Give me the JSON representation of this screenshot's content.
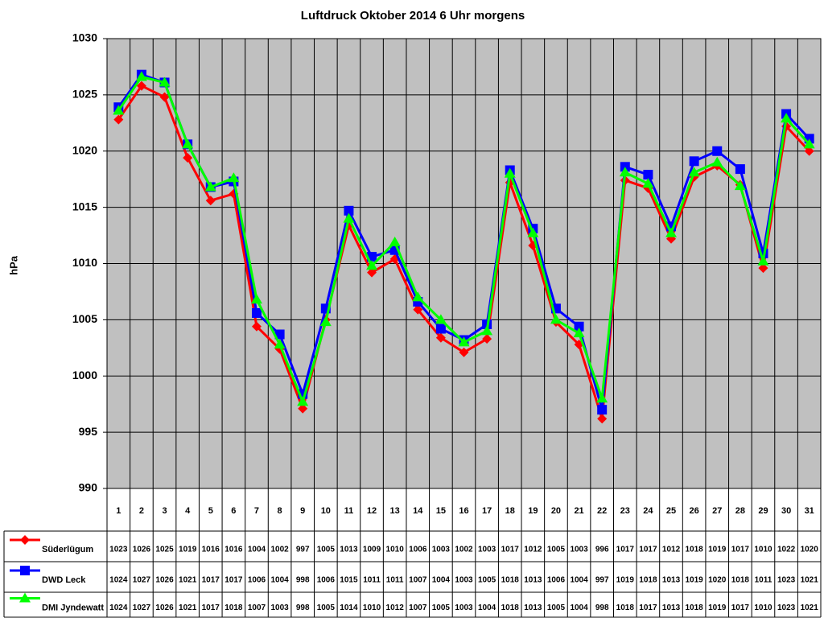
{
  "chart_data": {
    "type": "line",
    "title": "Luftdruck Oktober 2014 6 Uhr morgens",
    "y_label": "hPa",
    "categories": [
      "1",
      "2",
      "3",
      "4",
      "5",
      "6",
      "7",
      "8",
      "9",
      "10",
      "11",
      "12",
      "13",
      "14",
      "15",
      "16",
      "17",
      "18",
      "19",
      "20",
      "21",
      "22",
      "23",
      "24",
      "25",
      "26",
      "27",
      "28",
      "29",
      "30",
      "31"
    ],
    "series": [
      {
        "name": "Süderlügum",
        "color": "#ff0000",
        "marker": "diamond",
        "values": [
          1022.8,
          1025.8,
          1024.8,
          1019.4,
          1015.6,
          1016.2,
          1004.4,
          1002.4,
          997.1,
          1005.0,
          1013.4,
          1009.2,
          1010.4,
          1005.9,
          1003.4,
          1002.1,
          1003.3,
          1017.2,
          1011.6,
          1004.8,
          1002.8,
          996.2,
          1017.4,
          1016.7,
          1012.2,
          1017.7,
          1018.7,
          1017.0,
          1009.6,
          1022.2,
          1020.0
        ],
        "value_labels": [
          "1023",
          "1026",
          "1025",
          "1019",
          "1016",
          "1016",
          "1004",
          "1002",
          "997",
          "1005",
          "1013",
          "1009",
          "1010",
          "1006",
          "1003",
          "1002",
          "1003",
          "1017",
          "1012",
          "1005",
          "1003",
          "996",
          "1017",
          "1017",
          "1012",
          "1018",
          "1019",
          "1017",
          "1010",
          "1022",
          "1020"
        ]
      },
      {
        "name": "DWD Leck",
        "color": "#0000ff",
        "marker": "square",
        "values": [
          1023.9,
          1026.8,
          1026.1,
          1020.6,
          1016.8,
          1017.3,
          1005.6,
          1003.7,
          998.4,
          1006.0,
          1014.7,
          1010.6,
          1011.2,
          1006.6,
          1004.2,
          1003.2,
          1004.6,
          1018.3,
          1013.1,
          1006.0,
          1004.4,
          997.0,
          1018.6,
          1017.9,
          1013.3,
          1019.1,
          1020.0,
          1018.4,
          1010.9,
          1023.3,
          1021.1
        ],
        "value_labels": [
          "1024",
          "1027",
          "1026",
          "1021",
          "1017",
          "1017",
          "1006",
          "1004",
          "998",
          "1006",
          "1015",
          "1011",
          "1011",
          "1007",
          "1004",
          "1003",
          "1005",
          "1018",
          "1013",
          "1006",
          "1004",
          "997",
          "1019",
          "1018",
          "1013",
          "1019",
          "1020",
          "1018",
          "1011",
          "1023",
          "1021"
        ]
      },
      {
        "name": "DMI Jyndewatt",
        "color": "#00ff00",
        "marker": "triangle",
        "values": [
          1023.6,
          1026.6,
          1026.1,
          1020.6,
          1016.8,
          1017.6,
          1006.8,
          1002.8,
          997.7,
          1004.8,
          1014.0,
          1009.8,
          1011.9,
          1007.0,
          1005.0,
          1003.0,
          1004.0,
          1018.0,
          1012.7,
          1005.0,
          1003.8,
          998.0,
          1018.1,
          1017.1,
          1012.7,
          1018.1,
          1019.0,
          1016.9,
          1010.2,
          1022.9,
          1020.6
        ],
        "value_labels": [
          "1024",
          "1027",
          "1026",
          "1021",
          "1017",
          "1018",
          "1007",
          "1003",
          "998",
          "1005",
          "1014",
          "1010",
          "1012",
          "1007",
          "1005",
          "1003",
          "1004",
          "1018",
          "1013",
          "1005",
          "1004",
          "998",
          "1018",
          "1017",
          "1013",
          "1018",
          "1019",
          "1017",
          "1010",
          "1023",
          "1021"
        ]
      }
    ],
    "ylim": [
      990,
      1030
    ],
    "yticks": [
      990,
      995,
      1000,
      1005,
      1010,
      1015,
      1020,
      1025,
      1030
    ],
    "grid": true,
    "plot_color": "#c0c0c0"
  }
}
